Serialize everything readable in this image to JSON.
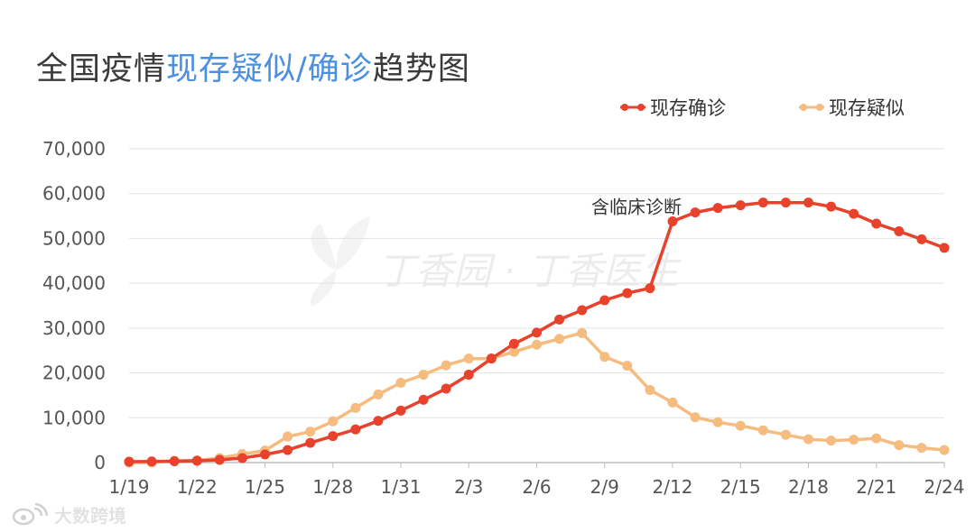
{
  "title": {
    "prefix": "全国疫情",
    "highlight": "现存疑似/确诊",
    "suffix": "趋势图",
    "highlight_color": "#4a8fe0"
  },
  "watermarks": {
    "center": "丁香园 · 丁香医生",
    "bottom_left": "大数跨境"
  },
  "chart_data": {
    "type": "line",
    "title": "全国疫情现存疑似/确诊趋势图",
    "xlabel": "",
    "ylabel": "",
    "ylim": [
      0,
      70000
    ],
    "y_ticks": [
      0,
      10000,
      20000,
      30000,
      40000,
      50000,
      60000,
      70000
    ],
    "y_tick_labels": [
      "0",
      "10,000",
      "20,000",
      "30,000",
      "40,000",
      "50,000",
      "60,000",
      "70,000"
    ],
    "x": [
      "1/19",
      "1/20",
      "1/21",
      "1/22",
      "1/23",
      "1/24",
      "1/25",
      "1/26",
      "1/27",
      "1/28",
      "1/29",
      "1/30",
      "1/31",
      "2/1",
      "2/2",
      "2/3",
      "2/4",
      "2/5",
      "2/6",
      "2/7",
      "2/8",
      "2/9",
      "2/10",
      "2/11",
      "2/12",
      "2/13",
      "2/14",
      "2/15",
      "2/16",
      "2/17",
      "2/18",
      "2/19",
      "2/20",
      "2/21",
      "2/22",
      "2/23",
      "2/24"
    ],
    "x_tick_labels": [
      "1/19",
      "1/22",
      "1/25",
      "1/28",
      "1/31",
      "2/3",
      "2/6",
      "2/9",
      "2/12",
      "2/15",
      "2/18",
      "2/21",
      "2/24"
    ],
    "grid": true,
    "legend_position": "top-right",
    "series": [
      {
        "name": "现存确诊",
        "color": "#e8412c",
        "values": [
          200,
          250,
          300,
          400,
          600,
          1000,
          1800,
          2800,
          4400,
          5900,
          7400,
          9300,
          11600,
          14000,
          16500,
          19600,
          23200,
          26500,
          29000,
          31900,
          34000,
          36200,
          37800,
          38900,
          53800,
          55800,
          56800,
          57400,
          58000,
          58000,
          58000,
          57100,
          55500,
          53300,
          51600,
          49800,
          47900
        ]
      },
      {
        "name": "现存疑似",
        "color": "#f5bb7f",
        "values": [
          0,
          0,
          400,
          500,
          1000,
          1900,
          2700,
          5800,
          6900,
          9200,
          12200,
          15200,
          17800,
          19600,
          21700,
          23200,
          23200,
          24700,
          26300,
          27600,
          28900,
          23600,
          21600,
          16200,
          13400,
          10100,
          9000,
          8200,
          7200,
          6200,
          5200,
          4900,
          5100,
          5400,
          3900,
          3300,
          2800
        ]
      }
    ],
    "annotations": [
      {
        "text": "含临床诊断",
        "x": "2/12",
        "series": "现存确诊"
      }
    ]
  }
}
